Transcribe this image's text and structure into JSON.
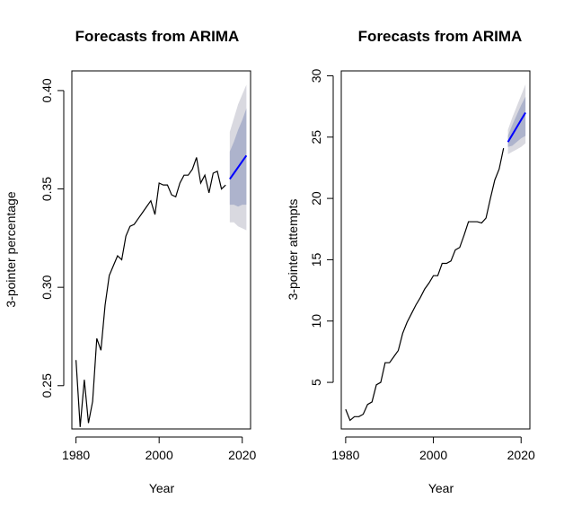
{
  "chart_data": [
    {
      "type": "line",
      "title": "Forecasts from ARIMA",
      "xlabel": "Year",
      "ylabel": "3-pointer percentage",
      "xlim": [
        1979,
        2022
      ],
      "ylim": [
        0.228,
        0.41
      ],
      "xticks": [
        1980,
        2000,
        2020
      ],
      "xtick_labels": [
        "1980",
        "2000",
        "2020"
      ],
      "yticks": [
        0.25,
        0.3,
        0.35,
        0.4
      ],
      "ytick_labels": [
        "0.25",
        "0.30",
        "0.35",
        "0.40"
      ],
      "colors": {
        "history": "#000000",
        "forecast": "#0000ff",
        "pi80": "#adb3cc",
        "pi95": "#d9d9e0"
      },
      "history": {
        "x": [
          1980,
          1981,
          1982,
          1983,
          1984,
          1985,
          1986,
          1987,
          1988,
          1989,
          1990,
          1991,
          1992,
          1993,
          1994,
          1995,
          1996,
          1997,
          1998,
          1999,
          2000,
          2001,
          2002,
          2003,
          2004,
          2005,
          2006,
          2007,
          2008,
          2009,
          2010,
          2011,
          2012,
          2013,
          2014,
          2015,
          2016
        ],
        "y": [
          0.263,
          0.229,
          0.253,
          0.231,
          0.242,
          0.274,
          0.268,
          0.291,
          0.306,
          0.311,
          0.316,
          0.314,
          0.326,
          0.331,
          0.332,
          0.335,
          0.338,
          0.341,
          0.344,
          0.337,
          0.353,
          0.352,
          0.352,
          0.347,
          0.346,
          0.353,
          0.357,
          0.357,
          0.36,
          0.366,
          0.353,
          0.357,
          0.348,
          0.358,
          0.359,
          0.35,
          0.352
        ]
      },
      "forecast": {
        "x": [
          2017,
          2018,
          2019,
          2020,
          2021
        ],
        "mean": [
          0.355,
          0.358,
          0.361,
          0.364,
          0.367
        ],
        "lo80": [
          0.342,
          0.342,
          0.341,
          0.342,
          0.342
        ],
        "hi80": [
          0.369,
          0.374,
          0.38,
          0.385,
          0.391
        ],
        "lo95": [
          0.333,
          0.333,
          0.331,
          0.33,
          0.329
        ],
        "hi95": [
          0.379,
          0.386,
          0.393,
          0.398,
          0.403
        ]
      }
    },
    {
      "type": "line",
      "title": "Forecasts from ARIMA",
      "xlabel": "Year",
      "ylabel": "3-pointer attempts",
      "xlim": [
        1979,
        2022
      ],
      "ylim": [
        1.2,
        30.4
      ],
      "xticks": [
        1980,
        2000,
        2020
      ],
      "xtick_labels": [
        "1980",
        "2000",
        "2020"
      ],
      "yticks": [
        5,
        10,
        15,
        20,
        25,
        30
      ],
      "ytick_labels": [
        "5",
        "10",
        "15",
        "20",
        "25",
        "30"
      ],
      "colors": {
        "history": "#000000",
        "forecast": "#0000ff",
        "pi80": "#adb3cc",
        "pi95": "#d9d9e0"
      },
      "history": {
        "x": [
          1980,
          1981,
          1982,
          1983,
          1984,
          1985,
          1986,
          1987,
          1988,
          1989,
          1990,
          1991,
          1992,
          1993,
          1994,
          1995,
          1996,
          1997,
          1998,
          1999,
          2000,
          2001,
          2002,
          2003,
          2004,
          2005,
          2006,
          2007,
          2008,
          2009,
          2010,
          2011,
          2012,
          2013,
          2014,
          2015,
          2016
        ],
        "y": [
          2.8,
          1.9,
          2.2,
          2.2,
          2.4,
          3.2,
          3.4,
          4.8,
          5.0,
          6.6,
          6.6,
          7.1,
          7.6,
          9.0,
          9.9,
          10.6,
          11.3,
          11.9,
          12.6,
          13.1,
          13.7,
          13.7,
          14.7,
          14.7,
          14.9,
          15.8,
          16.0,
          17.0,
          18.1,
          18.1,
          18.1,
          18.0,
          18.4,
          20.0,
          21.5,
          22.4,
          24.1
        ]
      },
      "forecast": {
        "x": [
          2017,
          2018,
          2019,
          2020,
          2021
        ],
        "mean": [
          24.6,
          25.2,
          25.8,
          26.4,
          27.0
        ],
        "lo80": [
          24.2,
          24.3,
          24.6,
          24.9,
          25.1
        ],
        "hi80": [
          25.1,
          26.0,
          26.8,
          27.6,
          28.3
        ],
        "lo95": [
          23.6,
          23.8,
          24.0,
          24.2,
          24.5
        ],
        "hi95": [
          25.6,
          26.6,
          27.5,
          28.4,
          29.3
        ]
      }
    }
  ]
}
